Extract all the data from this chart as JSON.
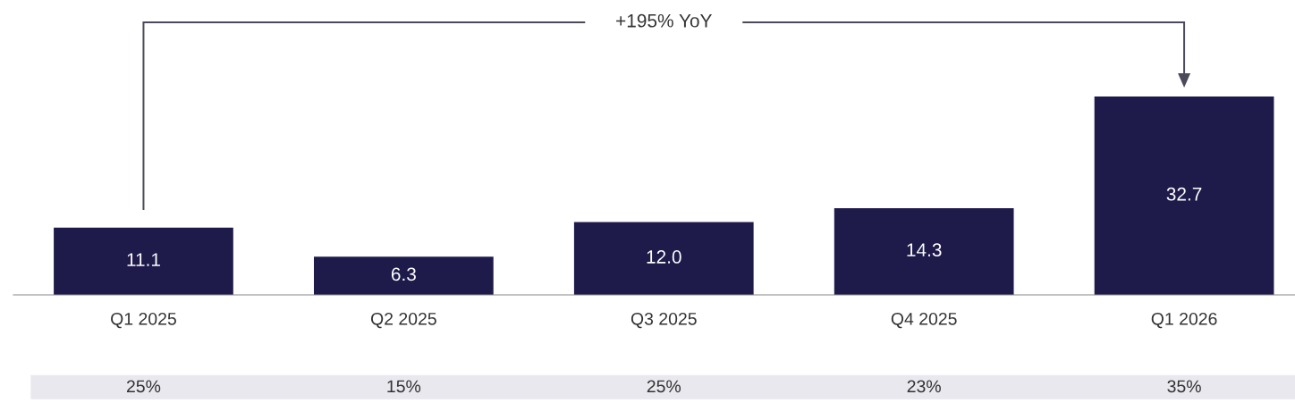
{
  "chart_data": {
    "type": "bar",
    "categories": [
      "Q1 2025",
      "Q2 2025",
      "Q3 2025",
      "Q4 2025",
      "Q1 2026"
    ],
    "values": [
      11.1,
      6.3,
      12.0,
      14.3,
      32.7
    ],
    "color": "#1e1b4b",
    "value_labels": [
      "11.1",
      "6.3",
      "12.0",
      "14.3",
      "32.7"
    ],
    "annotations": [
      "+195% YoY",
      "25%",
      "15%",
      "25%",
      "23%",
      "35%"
    ]
  }
}
